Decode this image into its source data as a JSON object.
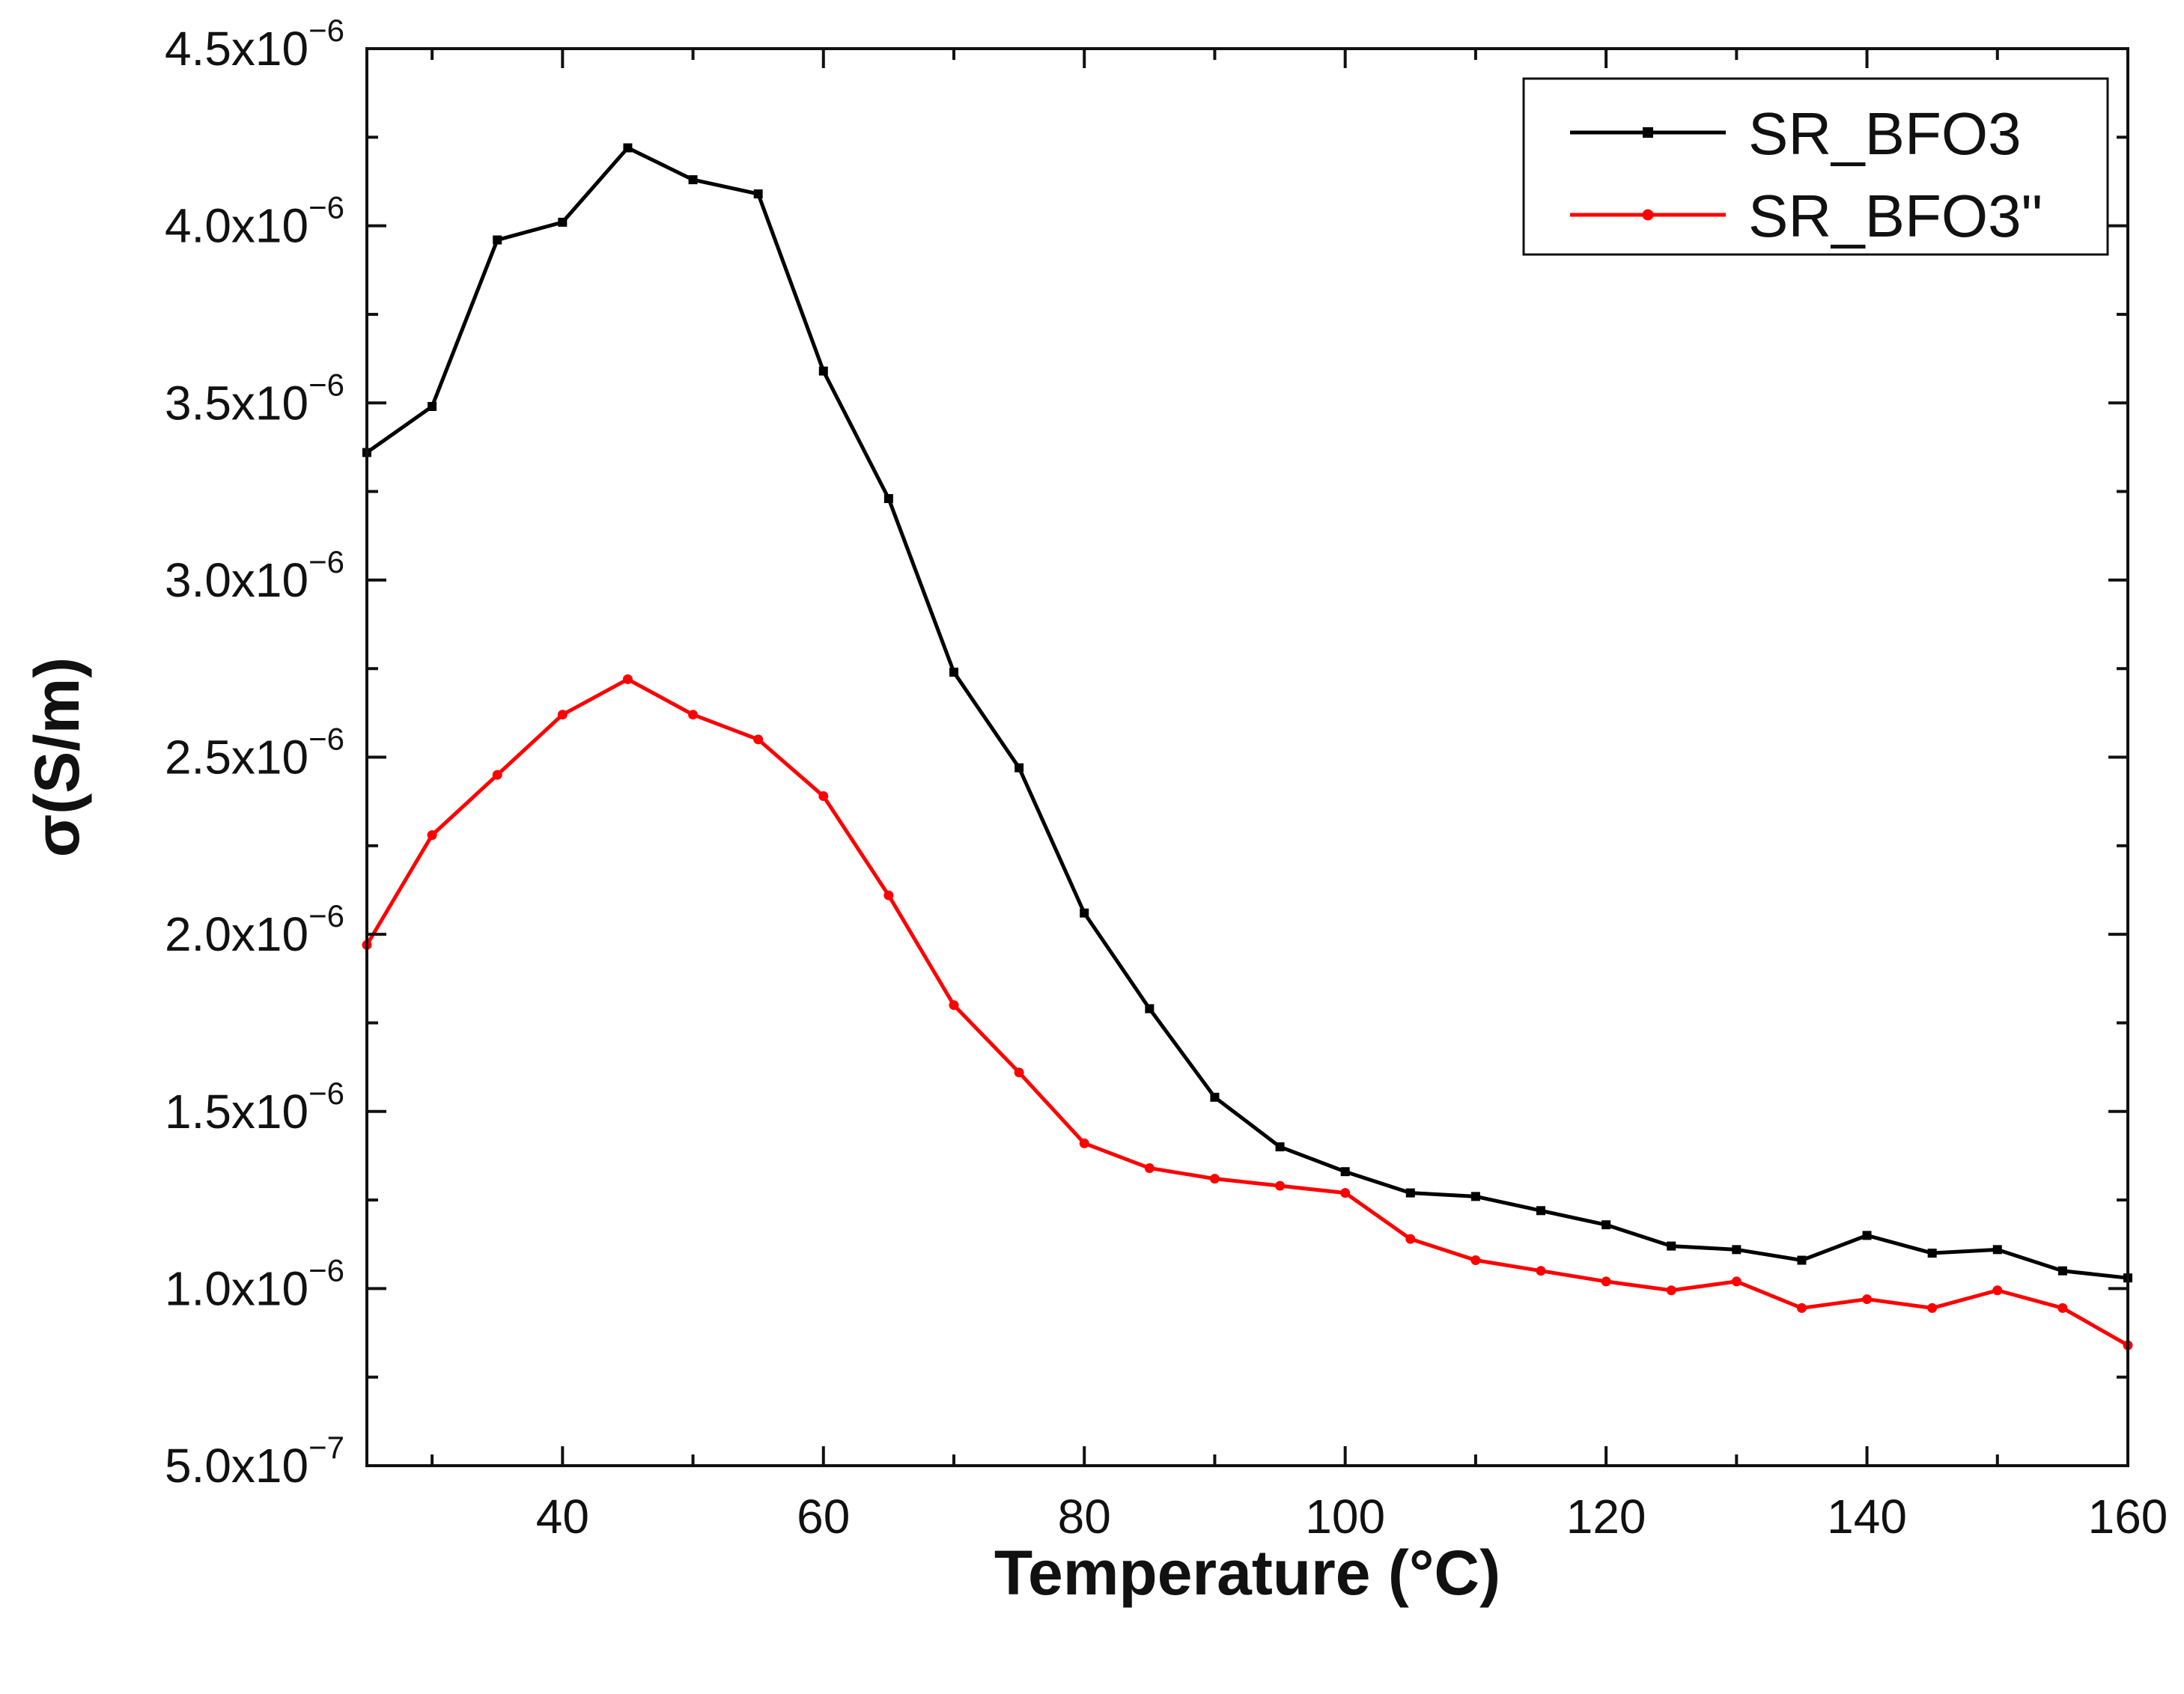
{
  "chart_data": {
    "type": "line",
    "title": "",
    "xlabel": "Temperature (°C)",
    "ylabel": "σ(S/m)",
    "xlim": [
      25,
      160
    ],
    "ylim": [
      5e-07,
      4.5e-06
    ],
    "grid": false,
    "legend_position": "top-right",
    "x_ticks": [
      40,
      60,
      80,
      100,
      120,
      140,
      160
    ],
    "x_tick_labels": [
      "40",
      "60",
      "80",
      "100",
      "120",
      "140",
      "160"
    ],
    "y_ticks": [
      5e-07,
      1e-06,
      1.5e-06,
      2e-06,
      2.5e-06,
      3e-06,
      3.5e-06,
      4e-06,
      4.5e-06
    ],
    "y_tick_labels": [
      {
        "mantissa": "5.0x10",
        "exp": "−7"
      },
      {
        "mantissa": "1.0x10",
        "exp": "−6"
      },
      {
        "mantissa": "1.5x10",
        "exp": "−6"
      },
      {
        "mantissa": "2.0x10",
        "exp": "−6"
      },
      {
        "mantissa": "2.5x10",
        "exp": "−6"
      },
      {
        "mantissa": "3.0x10",
        "exp": "−6"
      },
      {
        "mantissa": "3.5x10",
        "exp": "−6"
      },
      {
        "mantissa": "4.0x10",
        "exp": "−6"
      },
      {
        "mantissa": "4.5x10",
        "exp": "−6"
      }
    ],
    "x": [
      25,
      30,
      35,
      40,
      45,
      50,
      55,
      60,
      65,
      70,
      75,
      80,
      85,
      90,
      95,
      100,
      105,
      110,
      115,
      120,
      125,
      130,
      135,
      140,
      145,
      150,
      155,
      160
    ],
    "series": [
      {
        "name": "SR_BFO3",
        "color": "#000000",
        "marker": "square",
        "values": [
          3.36e-06,
          3.49e-06,
          3.96e-06,
          4.01e-06,
          4.22e-06,
          4.13e-06,
          4.09e-06,
          3.59e-06,
          3.23e-06,
          2.74e-06,
          2.47e-06,
          2.06e-06,
          1.79e-06,
          1.54e-06,
          1.4e-06,
          1.33e-06,
          1.27e-06,
          1.26e-06,
          1.22e-06,
          1.18e-06,
          1.12e-06,
          1.11e-06,
          1.08e-06,
          1.15e-06,
          1.1e-06,
          1.11e-06,
          1.05e-06,
          1.03e-06
        ]
      },
      {
        "name": "SR_BFO3\"",
        "color": "#ff0000",
        "marker": "circle",
        "values": [
          1.97e-06,
          2.28e-06,
          2.45e-06,
          2.62e-06,
          2.72e-06,
          2.62e-06,
          2.55e-06,
          2.39e-06,
          2.11e-06,
          1.8e-06,
          1.61e-06,
          1.41e-06,
          1.34e-06,
          1.31e-06,
          1.29e-06,
          1.27e-06,
          1.14e-06,
          1.08e-06,
          1.05e-06,
          1.02e-06,
          9.95e-07,
          1.02e-06,
          9.45e-07,
          9.7e-07,
          9.45e-07,
          9.95e-07,
          9.45e-07,
          8.4e-07
        ]
      }
    ]
  }
}
